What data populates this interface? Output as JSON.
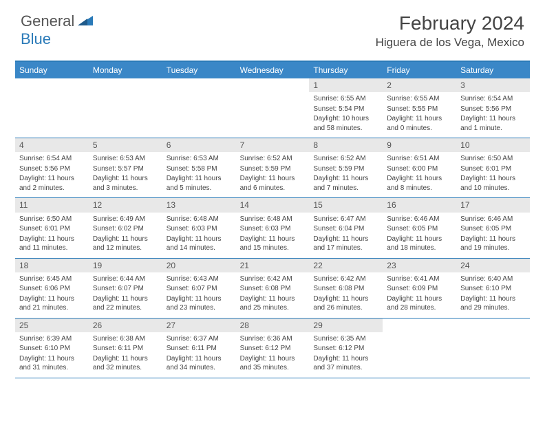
{
  "brand": {
    "part1": "General",
    "part2": "Blue"
  },
  "title": "February 2024",
  "location": "Higuera de los Vega, Mexico",
  "colors": {
    "header_bar": "#3a87c7",
    "rule": "#2a7ab8",
    "daynum_bg": "#e8e8e8",
    "text": "#444444",
    "logo_gray": "#555555",
    "logo_blue": "#2a7ab8"
  },
  "weekdays": [
    "Sunday",
    "Monday",
    "Tuesday",
    "Wednesday",
    "Thursday",
    "Friday",
    "Saturday"
  ],
  "first_weekday_index": 4,
  "days": [
    {
      "n": 1,
      "sunrise": "6:55 AM",
      "sunset": "5:54 PM",
      "daylight": "10 hours and 58 minutes."
    },
    {
      "n": 2,
      "sunrise": "6:55 AM",
      "sunset": "5:55 PM",
      "daylight": "11 hours and 0 minutes."
    },
    {
      "n": 3,
      "sunrise": "6:54 AM",
      "sunset": "5:56 PM",
      "daylight": "11 hours and 1 minute."
    },
    {
      "n": 4,
      "sunrise": "6:54 AM",
      "sunset": "5:56 PM",
      "daylight": "11 hours and 2 minutes."
    },
    {
      "n": 5,
      "sunrise": "6:53 AM",
      "sunset": "5:57 PM",
      "daylight": "11 hours and 3 minutes."
    },
    {
      "n": 6,
      "sunrise": "6:53 AM",
      "sunset": "5:58 PM",
      "daylight": "11 hours and 5 minutes."
    },
    {
      "n": 7,
      "sunrise": "6:52 AM",
      "sunset": "5:59 PM",
      "daylight": "11 hours and 6 minutes."
    },
    {
      "n": 8,
      "sunrise": "6:52 AM",
      "sunset": "5:59 PM",
      "daylight": "11 hours and 7 minutes."
    },
    {
      "n": 9,
      "sunrise": "6:51 AM",
      "sunset": "6:00 PM",
      "daylight": "11 hours and 8 minutes."
    },
    {
      "n": 10,
      "sunrise": "6:50 AM",
      "sunset": "6:01 PM",
      "daylight": "11 hours and 10 minutes."
    },
    {
      "n": 11,
      "sunrise": "6:50 AM",
      "sunset": "6:01 PM",
      "daylight": "11 hours and 11 minutes."
    },
    {
      "n": 12,
      "sunrise": "6:49 AM",
      "sunset": "6:02 PM",
      "daylight": "11 hours and 12 minutes."
    },
    {
      "n": 13,
      "sunrise": "6:48 AM",
      "sunset": "6:03 PM",
      "daylight": "11 hours and 14 minutes."
    },
    {
      "n": 14,
      "sunrise": "6:48 AM",
      "sunset": "6:03 PM",
      "daylight": "11 hours and 15 minutes."
    },
    {
      "n": 15,
      "sunrise": "6:47 AM",
      "sunset": "6:04 PM",
      "daylight": "11 hours and 17 minutes."
    },
    {
      "n": 16,
      "sunrise": "6:46 AM",
      "sunset": "6:05 PM",
      "daylight": "11 hours and 18 minutes."
    },
    {
      "n": 17,
      "sunrise": "6:46 AM",
      "sunset": "6:05 PM",
      "daylight": "11 hours and 19 minutes."
    },
    {
      "n": 18,
      "sunrise": "6:45 AM",
      "sunset": "6:06 PM",
      "daylight": "11 hours and 21 minutes."
    },
    {
      "n": 19,
      "sunrise": "6:44 AM",
      "sunset": "6:07 PM",
      "daylight": "11 hours and 22 minutes."
    },
    {
      "n": 20,
      "sunrise": "6:43 AM",
      "sunset": "6:07 PM",
      "daylight": "11 hours and 23 minutes."
    },
    {
      "n": 21,
      "sunrise": "6:42 AM",
      "sunset": "6:08 PM",
      "daylight": "11 hours and 25 minutes."
    },
    {
      "n": 22,
      "sunrise": "6:42 AM",
      "sunset": "6:08 PM",
      "daylight": "11 hours and 26 minutes."
    },
    {
      "n": 23,
      "sunrise": "6:41 AM",
      "sunset": "6:09 PM",
      "daylight": "11 hours and 28 minutes."
    },
    {
      "n": 24,
      "sunrise": "6:40 AM",
      "sunset": "6:10 PM",
      "daylight": "11 hours and 29 minutes."
    },
    {
      "n": 25,
      "sunrise": "6:39 AM",
      "sunset": "6:10 PM",
      "daylight": "11 hours and 31 minutes."
    },
    {
      "n": 26,
      "sunrise": "6:38 AM",
      "sunset": "6:11 PM",
      "daylight": "11 hours and 32 minutes."
    },
    {
      "n": 27,
      "sunrise": "6:37 AM",
      "sunset": "6:11 PM",
      "daylight": "11 hours and 34 minutes."
    },
    {
      "n": 28,
      "sunrise": "6:36 AM",
      "sunset": "6:12 PM",
      "daylight": "11 hours and 35 minutes."
    },
    {
      "n": 29,
      "sunrise": "6:35 AM",
      "sunset": "6:12 PM",
      "daylight": "11 hours and 37 minutes."
    }
  ],
  "labels": {
    "sunrise": "Sunrise:",
    "sunset": "Sunset:",
    "daylight": "Daylight:"
  }
}
